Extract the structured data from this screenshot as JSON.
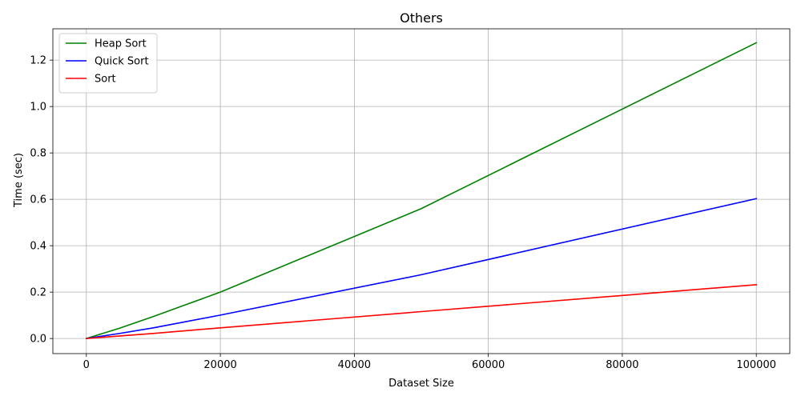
{
  "chart_data": {
    "type": "line",
    "title": "Others",
    "xlabel": "Dataset Size",
    "ylabel": "Time (sec)",
    "xlim": [
      -5000,
      105000
    ],
    "ylim": [
      -0.065,
      1.335
    ],
    "x_ticks": [
      0,
      20000,
      40000,
      60000,
      80000,
      100000
    ],
    "x_tick_labels": [
      "0",
      "20000",
      "40000",
      "60000",
      "80000",
      "100000"
    ],
    "y_ticks": [
      0.0,
      0.2,
      0.4,
      0.6,
      0.8,
      1.0,
      1.2
    ],
    "y_tick_labels": [
      "0.0",
      "0.2",
      "0.4",
      "0.6",
      "0.8",
      "1.0",
      "1.2"
    ],
    "grid": true,
    "legend_position": "upper-left",
    "x": [
      0,
      5000,
      10000,
      20000,
      50000,
      100000
    ],
    "series": [
      {
        "name": "Heap Sort",
        "color": "#008000",
        "values": [
          0.0,
          0.045,
          0.095,
          0.2,
          0.56,
          1.275
        ]
      },
      {
        "name": "Quick Sort",
        "color": "#0000ff",
        "values": [
          0.0,
          0.022,
          0.046,
          0.101,
          0.275,
          0.603
        ]
      },
      {
        "name": "Sort",
        "color": "#ff0000",
        "values": [
          0.0,
          0.011,
          0.022,
          0.046,
          0.116,
          0.232
        ]
      }
    ]
  }
}
